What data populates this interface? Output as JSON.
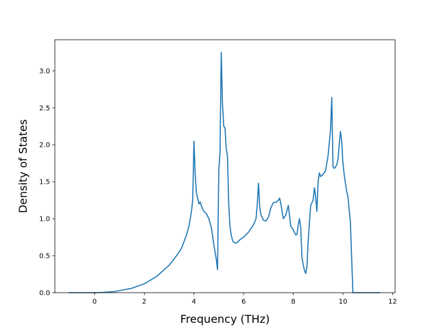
{
  "chart_data": {
    "type": "line",
    "title": "",
    "xlabel": "Frequency (THz)",
    "ylabel": "Density of States",
    "xlim": [
      -1.6,
      12.1
    ],
    "ylim": [
      0.0,
      3.42
    ],
    "xticks": [
      0,
      2,
      4,
      6,
      8,
      10,
      12
    ],
    "xtick_labels": [
      "0",
      "2",
      "4",
      "6",
      "8",
      "10",
      "12"
    ],
    "yticks": [
      0.0,
      0.5,
      1.0,
      1.5,
      2.0,
      2.5,
      3.0
    ],
    "ytick_labels": [
      "0.0",
      "0.5",
      "1.0",
      "1.5",
      "2.0",
      "2.5",
      "3.0"
    ],
    "grid": false,
    "series": [
      {
        "color": "#1f77b4",
        "x": [
          -1.05,
          -0.5,
          0.0,
          0.3,
          0.5,
          0.8,
          1.0,
          1.5,
          2.0,
          2.5,
          3.0,
          3.3,
          3.5,
          3.7,
          3.8,
          3.9,
          3.95,
          4.0,
          4.05,
          4.1,
          4.2,
          4.25,
          4.3,
          4.4,
          4.5,
          4.6,
          4.7,
          4.8,
          4.9,
          4.95,
          5.0,
          5.05,
          5.1,
          5.15,
          5.2,
          5.25,
          5.3,
          5.35,
          5.4,
          5.45,
          5.5,
          5.55,
          5.6,
          5.7,
          5.8,
          5.9,
          6.0,
          6.2,
          6.4,
          6.5,
          6.55,
          6.6,
          6.65,
          6.7,
          6.8,
          6.9,
          7.0,
          7.1,
          7.2,
          7.3,
          7.4,
          7.45,
          7.5,
          7.6,
          7.7,
          7.8,
          7.9,
          8.0,
          8.1,
          8.15,
          8.2,
          8.25,
          8.3,
          8.35,
          8.4,
          8.45,
          8.5,
          8.55,
          8.6,
          8.7,
          8.8,
          8.85,
          8.9,
          8.95,
          9.0,
          9.05,
          9.1,
          9.2,
          9.3,
          9.4,
          9.5,
          9.55,
          9.6,
          9.65,
          9.7,
          9.75,
          9.8,
          9.85,
          9.9,
          9.95,
          10.0,
          10.05,
          10.1,
          10.15,
          10.2,
          10.3,
          10.4,
          10.45,
          10.5,
          10.55,
          10.6,
          11.0,
          11.5
        ],
        "y": [
          0.0,
          0.0,
          0.0,
          0.003,
          0.008,
          0.015,
          0.028,
          0.06,
          0.12,
          0.22,
          0.37,
          0.5,
          0.6,
          0.78,
          0.9,
          1.1,
          1.25,
          2.05,
          1.6,
          1.35,
          1.2,
          1.23,
          1.17,
          1.1,
          1.07,
          1.0,
          0.88,
          0.65,
          0.45,
          0.31,
          1.65,
          1.9,
          3.25,
          2.55,
          2.25,
          2.23,
          1.95,
          1.85,
          1.2,
          0.9,
          0.78,
          0.71,
          0.68,
          0.67,
          0.7,
          0.73,
          0.75,
          0.82,
          0.92,
          1.0,
          1.2,
          1.48,
          1.15,
          1.05,
          0.98,
          0.97,
          1.02,
          1.15,
          1.22,
          1.22,
          1.25,
          1.28,
          1.2,
          1.0,
          1.05,
          1.18,
          0.9,
          0.85,
          0.78,
          0.79,
          0.92,
          1.0,
          0.88,
          0.48,
          0.38,
          0.3,
          0.26,
          0.35,
          0.7,
          1.18,
          1.25,
          1.42,
          1.3,
          1.1,
          1.5,
          1.62,
          1.57,
          1.6,
          1.65,
          1.85,
          2.2,
          2.64,
          1.7,
          1.68,
          1.7,
          1.73,
          1.8,
          2.0,
          2.18,
          2.05,
          1.75,
          1.6,
          1.48,
          1.37,
          1.3,
          0.95,
          0.0,
          0.0,
          0.0,
          0.0,
          0.0,
          0.0,
          0.0
        ]
      }
    ]
  }
}
